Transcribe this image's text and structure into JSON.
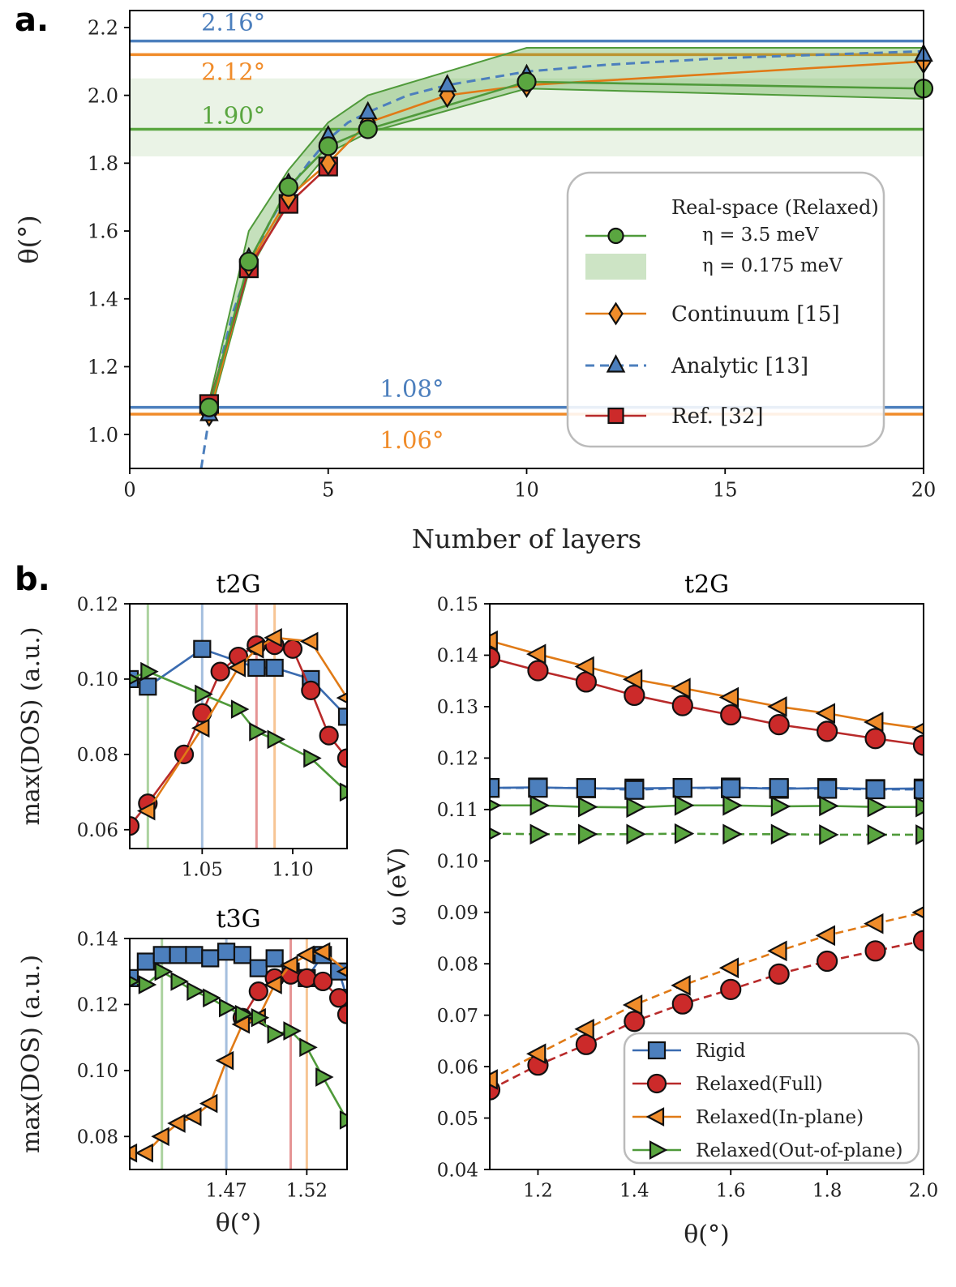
{
  "panel_labels": {
    "a": "a.",
    "b": "b."
  },
  "colors": {
    "blue": "#4c7fbd",
    "orange": "#f08c2a",
    "green": "#5aa640",
    "red": "#cc2a2a",
    "blue_dark": "#3a6bb0",
    "orange_dark": "#e07a16",
    "green_dark": "#4f9a3a",
    "red_dark": "#b82a2a"
  },
  "chart_data": [
    {
      "id": "a",
      "type": "line",
      "xlabel": "Number of layers",
      "ylabel": "θ(°)",
      "xlim": [
        0,
        20
      ],
      "ylim": [
        0.9,
        2.25
      ],
      "xticks": [
        0,
        5,
        10,
        15,
        20
      ],
      "yticks": [
        1.0,
        1.2,
        1.4,
        1.6,
        1.8,
        2.0,
        2.2
      ],
      "hlines": [
        {
          "y": 2.16,
          "label": "2.16°",
          "color": "blue",
          "label_x": 1.8
        },
        {
          "y": 2.12,
          "label": "2.12°",
          "color": "orange",
          "label_x": 1.8
        },
        {
          "y": 1.9,
          "label": "1.90°",
          "color": "green",
          "label_x": 1.8
        },
        {
          "y": 1.08,
          "label": "1.08°",
          "color": "blue",
          "label_x": 6.3
        },
        {
          "y": 1.06,
          "label": "1.06°",
          "color": "orange",
          "label_x": 6.3
        }
      ],
      "hband": {
        "y0": 1.82,
        "y1": 2.05,
        "color": "green"
      },
      "series": [
        {
          "name": "Real-space (Relaxed) η = 3.5 meV",
          "marker": "circle",
          "color": "green",
          "x": [
            2,
            3,
            4,
            5,
            6,
            10,
            20
          ],
          "y": [
            1.08,
            1.51,
            1.73,
            1.85,
            1.9,
            2.04,
            2.02
          ],
          "band_upper": [
            1.1,
            1.6,
            1.78,
            1.92,
            2.0,
            2.14,
            2.14
          ],
          "band_lower": [
            1.05,
            1.48,
            1.69,
            1.83,
            1.89,
            2.02,
            1.99
          ]
        },
        {
          "name": "Continuum [15]",
          "marker": "diamond",
          "color": "orange",
          "x": [
            2,
            3,
            4,
            5,
            6,
            8,
            10,
            20
          ],
          "y": [
            1.06,
            1.5,
            1.7,
            1.8,
            1.92,
            2.0,
            2.03,
            2.1
          ]
        },
        {
          "name": "Analytic [13]",
          "marker": "triangle",
          "color": "blue",
          "dashed": true,
          "x": [
            2,
            3,
            4,
            5,
            6,
            8,
            10,
            20
          ],
          "y": [
            1.06,
            1.52,
            1.74,
            1.88,
            1.95,
            2.03,
            2.06,
            2.12
          ],
          "curve": {
            "x": [
              1.8,
              2,
              2.3,
              2.6,
              3,
              3.5,
              4,
              4.5,
              5,
              5.5,
              6,
              7,
              8,
              10,
              12,
              15,
              20
            ],
            "y": [
              0.9,
              1.05,
              1.22,
              1.36,
              1.49,
              1.62,
              1.72,
              1.8,
              1.87,
              1.92,
              1.95,
              2.0,
              2.03,
              2.07,
              2.09,
              2.11,
              2.13
            ]
          }
        },
        {
          "name": "Ref. [32]",
          "marker": "square",
          "color": "red",
          "x": [
            2,
            3,
            4,
            5
          ],
          "y": [
            1.09,
            1.49,
            1.68,
            1.79
          ]
        }
      ],
      "legend": {
        "title": "Real-space (Relaxed)",
        "entries": [
          "η = 3.5 meV",
          "η = 0.175 meV",
          "Continuum [15]",
          "Analytic [13]",
          "Ref. [32]"
        ],
        "position": "center-right"
      }
    },
    {
      "id": "b1",
      "type": "line",
      "title": "t2G",
      "xlabel": "",
      "ylabel": "max(DOS) (a.u.)",
      "xlim": [
        1.01,
        1.13
      ],
      "ylim": [
        0.055,
        0.12
      ],
      "xticks": [
        1.05,
        1.1
      ],
      "xticklabels": [
        "1.05",
        "1.10"
      ],
      "yticks": [
        0.06,
        0.08,
        0.1,
        0.12
      ],
      "yticklabels": [
        "0.06",
        "0.08",
        "0.10",
        "0.12"
      ],
      "vlines": [
        {
          "x": 1.02,
          "color": "green"
        },
        {
          "x": 1.05,
          "color": "blue"
        },
        {
          "x": 1.08,
          "color": "red"
        },
        {
          "x": 1.09,
          "color": "orange"
        }
      ],
      "series": [
        {
          "name": "Rigid",
          "marker": "square",
          "color": "blue",
          "x": [
            1.01,
            1.02,
            1.05,
            1.08,
            1.09,
            1.11,
            1.13
          ],
          "y": [
            0.1,
            0.098,
            0.108,
            0.103,
            0.103,
            0.1,
            0.09
          ]
        },
        {
          "name": "Relaxed(Full)",
          "marker": "circle",
          "color": "red",
          "x": [
            1.01,
            1.02,
            1.04,
            1.05,
            1.06,
            1.07,
            1.08,
            1.09,
            1.1,
            1.11,
            1.12,
            1.13
          ],
          "y": [
            0.061,
            0.067,
            0.08,
            0.091,
            0.102,
            0.106,
            0.109,
            0.109,
            0.108,
            0.097,
            0.085,
            0.079
          ]
        },
        {
          "name": "Relaxed(In-plane)",
          "marker": "tri-left",
          "color": "orange",
          "x": [
            1.02,
            1.05,
            1.07,
            1.08,
            1.09,
            1.11,
            1.13
          ],
          "y": [
            0.065,
            0.087,
            0.103,
            0.108,
            0.111,
            0.11,
            0.095
          ]
        },
        {
          "name": "Relaxed(Out-of-plane)",
          "marker": "tri-right",
          "color": "green",
          "x": [
            1.01,
            1.02,
            1.05,
            1.07,
            1.08,
            1.09,
            1.11,
            1.13
          ],
          "y": [
            0.1,
            0.102,
            0.096,
            0.092,
            0.086,
            0.084,
            0.079,
            0.07
          ]
        }
      ]
    },
    {
      "id": "b2",
      "type": "line",
      "title": "t3G",
      "xlabel": "θ(°)",
      "ylabel": "max(DOS) (a.u.)",
      "xlim": [
        1.41,
        1.545
      ],
      "ylim": [
        0.07,
        0.14
      ],
      "xticks": [
        1.47,
        1.52
      ],
      "xticklabels": [
        "1.47",
        "1.52"
      ],
      "yticks": [
        0.08,
        0.1,
        0.12,
        0.14
      ],
      "yticklabels": [
        "0.08",
        "0.10",
        "0.12",
        "0.14"
      ],
      "vlines": [
        {
          "x": 1.43,
          "color": "green"
        },
        {
          "x": 1.47,
          "color": "blue"
        },
        {
          "x": 1.51,
          "color": "red"
        },
        {
          "x": 1.52,
          "color": "orange"
        }
      ],
      "series": [
        {
          "name": "Rigid",
          "marker": "square",
          "color": "blue",
          "x": [
            1.41,
            1.42,
            1.43,
            1.44,
            1.45,
            1.46,
            1.47,
            1.48,
            1.49,
            1.5,
            1.51,
            1.52,
            1.53,
            1.54,
            1.545
          ],
          "y": [
            0.128,
            0.133,
            0.135,
            0.135,
            0.135,
            0.134,
            0.136,
            0.135,
            0.131,
            0.134,
            0.13,
            0.128,
            0.135,
            0.13,
            0.122
          ]
        },
        {
          "name": "Relaxed(Full)",
          "marker": "circle",
          "color": "red",
          "x": [
            1.48,
            1.49,
            1.5,
            1.51,
            1.52,
            1.53,
            1.54,
            1.545
          ],
          "y": [
            0.116,
            0.124,
            0.128,
            0.129,
            0.128,
            0.127,
            0.122,
            0.117
          ]
        },
        {
          "name": "Relaxed(In-plane)",
          "marker": "tri-left",
          "color": "orange",
          "x": [
            1.41,
            1.42,
            1.43,
            1.44,
            1.45,
            1.46,
            1.47,
            1.48,
            1.49,
            1.5,
            1.51,
            1.52,
            1.53,
            1.545
          ],
          "y": [
            0.075,
            0.075,
            0.08,
            0.084,
            0.086,
            0.09,
            0.103,
            0.114,
            0.116,
            0.126,
            0.132,
            0.135,
            0.136,
            0.13
          ]
        },
        {
          "name": "Relaxed(Out-of-plane)",
          "marker": "tri-right",
          "color": "green",
          "x": [
            1.41,
            1.42,
            1.43,
            1.44,
            1.45,
            1.46,
            1.47,
            1.48,
            1.49,
            1.5,
            1.51,
            1.52,
            1.53,
            1.545
          ],
          "y": [
            0.127,
            0.126,
            0.13,
            0.127,
            0.124,
            0.122,
            0.119,
            0.117,
            0.116,
            0.111,
            0.112,
            0.107,
            0.098,
            0.085
          ]
        }
      ]
    },
    {
      "id": "b3",
      "type": "line",
      "title": "t2G",
      "xlabel": "θ(°)",
      "ylabel": "ω (eV)",
      "xlim": [
        1.1,
        2.0
      ],
      "ylim": [
        0.04,
        0.15
      ],
      "xticks": [
        1.2,
        1.4,
        1.6,
        1.8,
        2.0
      ],
      "xticklabels": [
        "1.2",
        "1.4",
        "1.6",
        "1.8",
        "2.0"
      ],
      "yticks": [
        0.04,
        0.05,
        0.06,
        0.07,
        0.08,
        0.09,
        0.1,
        0.11,
        0.12,
        0.13,
        0.14,
        0.15
      ],
      "yticklabels": [
        "0.04",
        "0.05",
        "0.06",
        "0.07",
        "0.08",
        "0.09",
        "0.10",
        "0.11",
        "0.12",
        "0.13",
        "0.14",
        "0.15"
      ],
      "x": [
        1.1,
        1.2,
        1.3,
        1.4,
        1.5,
        1.6,
        1.7,
        1.8,
        1.9,
        2.0
      ],
      "series": [
        {
          "name": "Rigid",
          "marker": "square",
          "color": "blue",
          "y": [
            0.1142,
            0.1143,
            0.1141,
            0.1141,
            0.1142,
            0.1143,
            0.114,
            0.1142,
            0.114,
            0.1141
          ]
        },
        {
          "name": "Rigid",
          "marker": "square",
          "color": "blue",
          "dashed": true,
          "y": [
            0.1142,
            0.1142,
            0.1142,
            0.1138,
            0.1142,
            0.1141,
            0.1142,
            0.114,
            0.1139,
            0.1139
          ]
        },
        {
          "name": "Relaxed(Full)",
          "marker": "circle",
          "color": "red",
          "y": [
            0.1395,
            0.137,
            0.1348,
            0.1322,
            0.1302,
            0.1284,
            0.1265,
            0.1252,
            0.1238,
            0.1225
          ]
        },
        {
          "name": "Relaxed(In-plane)",
          "marker": "tri-left",
          "color": "orange",
          "y": [
            0.1428,
            0.1402,
            0.1378,
            0.1353,
            0.1336,
            0.1318,
            0.13,
            0.1287,
            0.127,
            0.1257
          ]
        },
        {
          "name": "Relaxed(Out-of-plane)",
          "marker": "tri-right",
          "color": "green",
          "y": [
            0.1108,
            0.1108,
            0.1105,
            0.1104,
            0.1108,
            0.1108,
            0.1106,
            0.1107,
            0.1105,
            0.1105
          ]
        },
        {
          "name": "Relaxed(Out-of-plane)",
          "marker": "tri-right",
          "color": "green",
          "dashed": true,
          "y": [
            0.1053,
            0.1052,
            0.1052,
            0.1052,
            0.1053,
            0.1052,
            0.1052,
            0.1051,
            0.1051,
            0.1051
          ]
        },
        {
          "name": "Relaxed(Full)",
          "marker": "circle",
          "color": "red",
          "dashed": true,
          "y": [
            0.0555,
            0.0603,
            0.0643,
            0.0688,
            0.0722,
            0.075,
            0.078,
            0.0805,
            0.0825,
            0.0845
          ]
        },
        {
          "name": "Relaxed(In-plane)",
          "marker": "tri-left",
          "color": "orange",
          "dashed": true,
          "y": [
            0.0575,
            0.0625,
            0.0673,
            0.072,
            0.0758,
            0.0792,
            0.0825,
            0.0855,
            0.0878,
            0.09
          ]
        }
      ],
      "legend": {
        "entries": [
          "Rigid",
          "Relaxed(Full)",
          "Relaxed(In-plane)",
          "Relaxed(Out-of-plane)"
        ],
        "position": "lower-right"
      }
    }
  ]
}
